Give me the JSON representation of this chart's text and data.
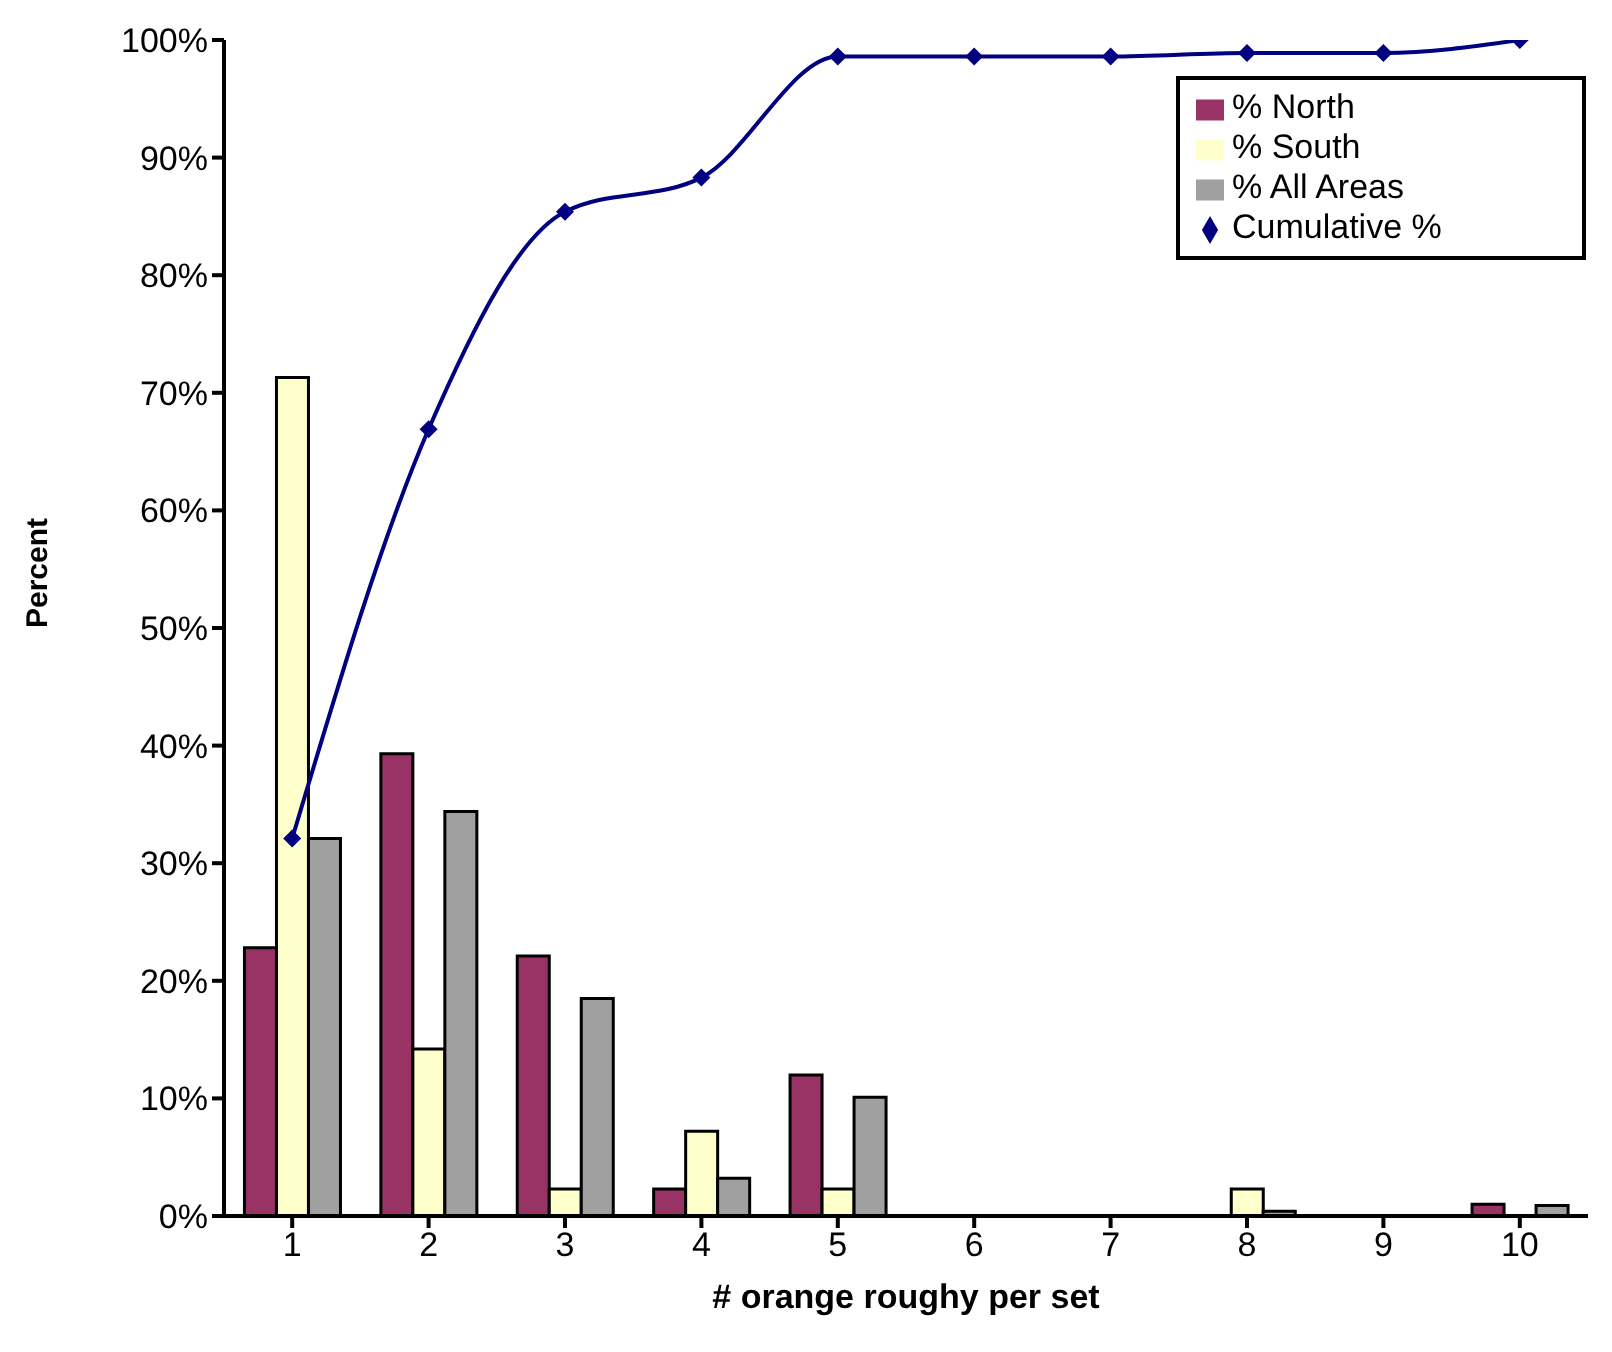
{
  "chart_data": {
    "type": "bar",
    "xlabel": "# orange roughy per set",
    "ylabel": "Percent",
    "categories": [
      "1",
      "2",
      "3",
      "4",
      "5",
      "6",
      "7",
      "8",
      "9",
      "10"
    ],
    "series": [
      {
        "name": "% North",
        "color": "#993366",
        "values": [
          22.8,
          39.3,
          22.1,
          2.3,
          12.0,
          0,
          0,
          0,
          0,
          1.0
        ]
      },
      {
        "name": "% South",
        "color": "#ffffcc",
        "values": [
          71.3,
          14.2,
          2.3,
          7.2,
          2.3,
          0,
          0,
          2.3,
          0,
          0
        ]
      },
      {
        "name": "% All Areas",
        "color": "#a0a0a0",
        "values": [
          32.1,
          34.4,
          18.5,
          3.2,
          10.1,
          0,
          0,
          0.4,
          0,
          0.9
        ]
      },
      {
        "name": "Cumulative %",
        "type": "line",
        "color": "#000080",
        "marker": "diamond",
        "values": [
          32.1,
          66.9,
          85.4,
          88.3,
          98.6,
          98.6,
          98.6,
          98.9,
          98.9,
          100
        ]
      }
    ],
    "ylim": [
      0,
      100
    ],
    "yticks": [
      {
        "value": 0,
        "label": "0%"
      },
      {
        "value": 10,
        "label": "10%"
      },
      {
        "value": 20,
        "label": "20%"
      },
      {
        "value": 30,
        "label": "30%"
      },
      {
        "value": 40,
        "label": "40%"
      },
      {
        "value": 50,
        "label": "50%"
      },
      {
        "value": 60,
        "label": "60%"
      },
      {
        "value": 70,
        "label": "70%"
      },
      {
        "value": 80,
        "label": "80%"
      },
      {
        "value": 90,
        "label": "90%"
      },
      {
        "value": 100,
        "label": "100%"
      }
    ],
    "legend": "top right"
  }
}
